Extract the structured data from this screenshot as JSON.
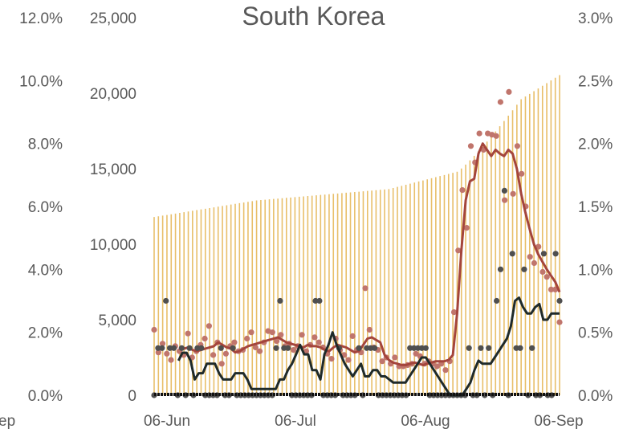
{
  "chart_data": {
    "type": "bar",
    "title": "South Korea",
    "x_ticks": [
      "06-Jun",
      "06-Jul",
      "06-Aug",
      "06-Sep"
    ],
    "x_clipped_label": "ep",
    "left_outer_axis": {
      "ticks": [
        "0.0%",
        "2.0%",
        "4.0%",
        "6.0%",
        "8.0%",
        "10.0%",
        "12.0%"
      ],
      "range": [
        0,
        12
      ]
    },
    "left_inner_axis": {
      "ticks": [
        "0",
        "5,000",
        "10,000",
        "15,000",
        "20,000",
        "25,000"
      ],
      "range": [
        0,
        25000
      ]
    },
    "right_axis": {
      "ticks": [
        "0.0%",
        "0.5%",
        "1.0%",
        "1.5%",
        "2.0%",
        "2.5%",
        "3.0%"
      ],
      "range": [
        0,
        3
      ]
    },
    "grid": false,
    "legend": "none",
    "colors": {
      "bars": "#E8BF6A",
      "red_points": "#C0756C",
      "red_line": "#A4453C",
      "dark_points": "#4F4F4F",
      "dark_line": "#1F2A2A",
      "baseline": "#111111"
    },
    "series": [
      {
        "kind": "bars",
        "axis": "left_inner",
        "start": 11800,
        "jun_end": 12900,
        "jul_end": 13650,
        "aug16": 14800,
        "aug31": 19600,
        "end": 21200
      },
      {
        "kind": "points",
        "axis": "right",
        "values": [
          0.52,
          0.34,
          0.41,
          0.33,
          0.28,
          0.39,
          0.35,
          0.32,
          0.49,
          0.3,
          0.35,
          0.4,
          0.45,
          0.55,
          0.32,
          0.42,
          0.25,
          0.33,
          0.39,
          0.42,
          0.35,
          0.36,
          0.45,
          0.5,
          0.38,
          0.35,
          0.42,
          0.51,
          0.5,
          0.43,
          0.48,
          0.39,
          0.41,
          0.36,
          0.39,
          0.48,
          0.35,
          0.4,
          0.46,
          0.42,
          0.38,
          0.33,
          0.29,
          0.45,
          0.36,
          0.32,
          0.28,
          0.47,
          0.36,
          0.34,
          0.85,
          0.52,
          0.38,
          0.36,
          0.27,
          0.3,
          0.25,
          0.3,
          0.23,
          0.23,
          0.24,
          0.25,
          0.33,
          0.31,
          0.25,
          0.27,
          0.25,
          0.23,
          0.25,
          0.2,
          0.27,
          0.66,
          1.15,
          1.63,
          1.33,
          1.98,
          1.85,
          2.08,
          1.95,
          2.08,
          2.07,
          2.06,
          2.33,
          1.55,
          2.41,
          1.6,
          1.98,
          1.76,
          1.5,
          1.1,
          1.05,
          1.18,
          0.98,
          0.94,
          0.84,
          0.84,
          0.58
        ]
      },
      {
        "kind": "line",
        "axis": "right",
        "values": [
          null,
          null,
          null,
          null,
          null,
          null,
          0.38,
          0.37,
          0.38,
          0.36,
          0.35,
          0.36,
          0.37,
          0.38,
          0.39,
          0.42,
          0.4,
          0.38,
          0.37,
          0.34,
          0.35,
          0.37,
          0.39,
          0.4,
          0.41,
          0.42,
          0.43,
          0.44,
          0.45,
          0.46,
          0.44,
          0.42,
          0.41,
          0.4,
          0.39,
          0.38,
          0.4,
          0.39,
          0.39,
          0.38,
          0.36,
          0.35,
          0.38,
          0.4,
          0.39,
          0.38,
          0.36,
          0.34,
          0.35,
          0.4,
          0.45,
          0.46,
          0.44,
          0.42,
          0.32,
          0.28,
          0.26,
          0.25,
          0.24,
          0.24,
          0.25,
          0.26,
          0.25,
          0.24,
          0.25,
          0.26,
          0.27,
          0.27,
          0.27,
          0.28,
          0.32,
          0.65,
          1.15,
          1.55,
          1.7,
          1.72,
          1.92,
          2.0,
          1.95,
          1.9,
          1.95,
          1.92,
          1.9,
          1.95,
          1.92,
          1.8,
          1.6,
          1.45,
          1.32,
          1.2,
          1.12,
          1.06,
          1.0,
          0.95,
          0.9,
          0.82
        ]
      },
      {
        "kind": "points",
        "axis": "left_outer",
        "values": [
          0,
          1.5,
          1.5,
          3,
          1.5,
          1.5,
          0,
          1.5,
          0,
          1.5,
          0,
          1.5,
          1.5,
          0,
          0,
          0,
          0,
          1.5,
          0,
          0,
          1.5,
          0,
          0,
          0,
          0,
          0,
          0,
          0,
          0,
          0,
          0,
          1.5,
          3,
          1.5,
          1.5,
          0,
          0,
          0,
          0,
          0,
          0,
          3,
          3,
          0,
          0,
          0,
          0,
          1.5,
          0,
          0,
          0,
          0,
          1.5,
          0,
          1.5,
          1.5,
          1.5,
          0,
          0,
          0,
          0,
          0,
          0,
          0,
          0,
          1.5,
          1.5,
          1.5,
          1.5,
          1.5,
          0,
          0,
          0,
          0,
          0,
          0,
          0,
          0,
          0,
          0,
          1.5,
          0,
          0,
          1.5,
          0,
          1.5,
          0,
          3,
          4,
          6.5,
          0,
          4.5,
          1.5,
          1.5,
          4,
          0,
          1.5,
          0,
          0,
          4.5,
          0,
          0,
          4.5,
          3
        ]
      },
      {
        "kind": "line",
        "axis": "left_outer",
        "values": [
          null,
          null,
          null,
          null,
          null,
          null,
          1.1,
          1.35,
          1.35,
          1.1,
          0.5,
          0.7,
          0.7,
          1,
          1,
          1,
          0.7,
          0.5,
          0.5,
          0.5,
          0.7,
          0.7,
          0.7,
          0.5,
          0.2,
          0.2,
          0.2,
          0.2,
          0.2,
          0.2,
          0.2,
          0.5,
          0.5,
          0.8,
          1,
          1.3,
          1.6,
          1.3,
          1.3,
          0.8,
          0.8,
          0.5,
          1.3,
          1.6,
          2,
          1.6,
          1.3,
          1,
          0.8,
          0.6,
          0.8,
          1,
          0.6,
          0.6,
          0.8,
          0.8,
          0.6,
          0.6,
          0.5,
          0.4,
          0.4,
          0.4,
          0.4,
          0.6,
          0.8,
          1,
          1.2,
          1.2,
          1,
          0.8,
          0.6,
          0.4,
          0.2,
          0,
          0,
          0,
          0,
          0.2,
          0.4,
          0.8,
          1.1,
          1,
          1,
          1,
          1.2,
          1.4,
          1.6,
          1.8,
          2.2,
          3,
          3.1,
          2.8,
          2.6,
          2.6,
          2.8,
          2.9,
          2.4,
          2.4,
          2.6,
          2.6,
          2.6
        ]
      }
    ]
  }
}
